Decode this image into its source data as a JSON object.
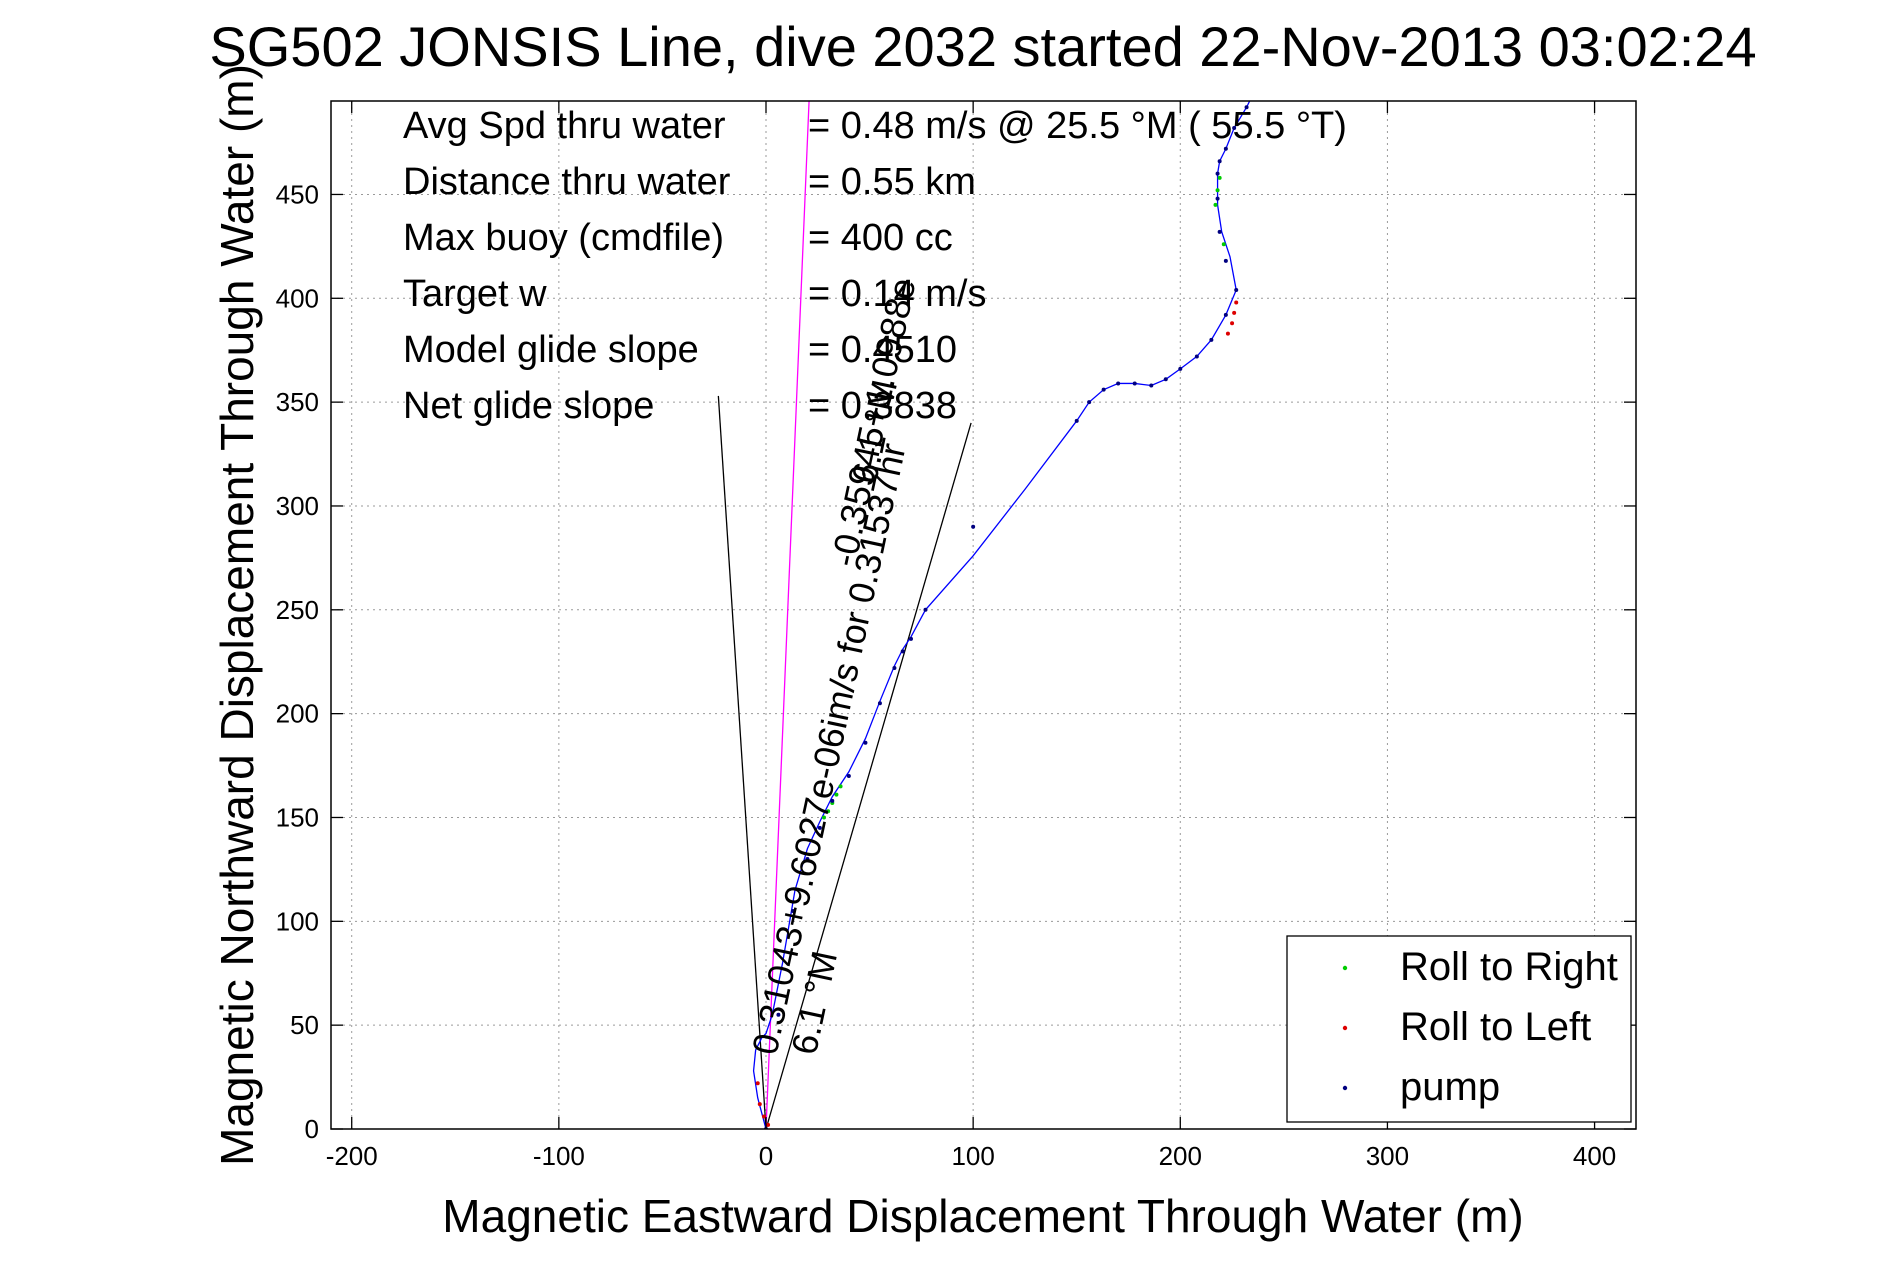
{
  "chart_data": {
    "type": "scatter",
    "title": "SG502 JONSIS Line, dive 2032 started 22-Nov-2013 03:02:24",
    "xlabel": "Magnetic Eastward Displacement Through Water (m)",
    "ylabel": "Magnetic Northward Displacement Through Water (m)",
    "xlim": [
      -210,
      420
    ],
    "ylim": [
      0,
      495
    ],
    "grid": true,
    "x_ticks": [
      -200,
      -100,
      0,
      100,
      200,
      300,
      400
    ],
    "x_tick_labels": [
      "-200",
      "-100",
      "0",
      "100",
      "200",
      "300",
      "400"
    ],
    "y_ticks": [
      0,
      50,
      100,
      150,
      200,
      250,
      300,
      350,
      400,
      450
    ],
    "y_tick_labels": [
      "0",
      "50",
      "100",
      "150",
      "200",
      "250",
      "300",
      "350",
      "400",
      "450"
    ],
    "legend_position": "bottom-right",
    "series": [
      {
        "name": "Roll to Right",
        "color": "#00cc00",
        "marker": "dot",
        "x": [
          28,
          30,
          32,
          34,
          36,
          217,
          218,
          219,
          221
        ],
        "y": [
          150,
          153,
          157,
          161,
          165,
          445,
          452,
          458,
          426
        ]
      },
      {
        "name": "Roll to Left",
        "color": "#dd0000",
        "marker": "dot",
        "x": [
          -4,
          -3,
          -1,
          1,
          223,
          225,
          226,
          227
        ],
        "y": [
          22,
          12,
          6,
          2,
          383,
          388,
          393,
          398
        ]
      },
      {
        "name": "pump",
        "color": "#000080",
        "marker": "dot",
        "x": [
          0,
          6,
          13,
          20,
          26,
          32,
          40,
          48,
          55,
          62,
          66,
          70,
          77,
          100,
          150,
          156,
          163,
          170,
          178,
          186,
          193,
          200,
          208,
          215,
          222,
          227,
          222,
          219,
          218,
          218,
          219,
          222,
          226,
          232
        ],
        "y": [
          0,
          55,
          105,
          130,
          145,
          158,
          170,
          186,
          205,
          222,
          230,
          236,
          250,
          290,
          341,
          350,
          356,
          359,
          359,
          358,
          361,
          366,
          372,
          380,
          392,
          404,
          418,
          432,
          448,
          460,
          466,
          472,
          482,
          492
        ]
      }
    ],
    "track": {
      "color": "#0000ff",
      "x": [
        0,
        -4,
        -6,
        -5,
        -2,
        0,
        3,
        8,
        14,
        20,
        26,
        32,
        40,
        48,
        55,
        62,
        66,
        70,
        77,
        100,
        125,
        150,
        156,
        163,
        170,
        178,
        186,
        193,
        200,
        208,
        215,
        222,
        227,
        224,
        220,
        218,
        218,
        219,
        222,
        226,
        232,
        236
      ],
      "y": [
        0,
        15,
        28,
        38,
        44,
        46,
        55,
        80,
        115,
        135,
        148,
        160,
        172,
        188,
        206,
        223,
        231,
        237,
        250,
        276,
        308,
        341,
        350,
        356,
        359,
        359,
        358,
        361,
        366,
        372,
        380,
        392,
        404,
        420,
        432,
        445,
        460,
        466,
        472,
        482,
        492,
        500
      ]
    },
    "reference_lines": [
      {
        "color": "#000000",
        "x": [
          0,
          -23
        ],
        "y": [
          0,
          353
        ]
      },
      {
        "color": "#000000",
        "x": [
          0,
          99
        ],
        "y": [
          0,
          340
        ]
      },
      {
        "color": "#ff00ff",
        "x": [
          0,
          21
        ],
        "y": [
          0,
          500
        ]
      }
    ],
    "annotations": [
      {
        "text": "Avg Spd thru water",
        "value": "=  0.48 m/s @  25.5 °M ( 55.5 °T)"
      },
      {
        "text": "Distance thru water",
        "value": "=  0.55 km"
      },
      {
        "text": "Max buoy (cmdfile)",
        "value": "= 400 cc"
      },
      {
        "text": "Target w",
        "value": "= 0.14 m/s"
      },
      {
        "text": "Model glide slope",
        "value": "= 0.4510"
      },
      {
        "text": "Net glide slope",
        "value": "= 0.3838"
      }
    ],
    "rotated_annotations": [
      {
        "text": "0.31043+9.6027e-06im/s for 0.31537hr",
        "x": 2,
        "y": 35
      },
      {
        "text": "6.1 °M",
        "x": 21,
        "y": 35
      },
      {
        "text": "-0.35945+1.0988e",
        "x": 40,
        "y": 270
      },
      {
        "text": "6.1 °M",
        "x": 50,
        "y": 310
      }
    ]
  }
}
